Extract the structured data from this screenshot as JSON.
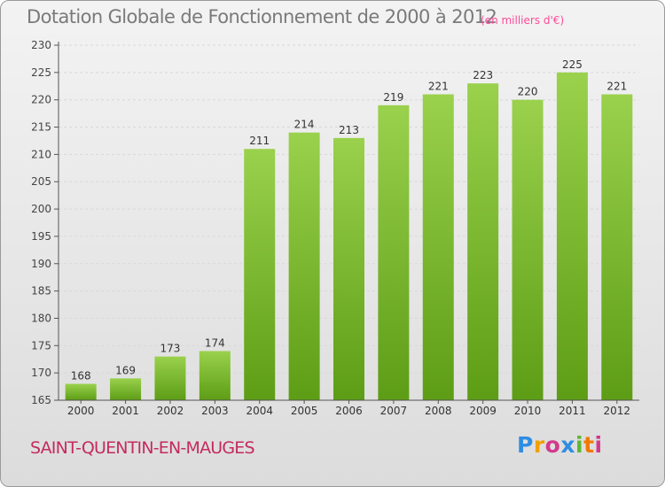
{
  "title": "Dotation Globale de Fonctionnement de 2000 à 2012",
  "subtitle": "(en milliers d'€)",
  "commune": "SAINT-QUENTIN-EN-MAUGES",
  "logo": {
    "p": "P",
    "r": "r",
    "o": "o",
    "x": "x",
    "i1": "i",
    "t": "t",
    "i2": "i"
  },
  "colors": {
    "bar_light": "#9ad14d",
    "bar_dark": "#5d9d15",
    "axis": "#555555",
    "grid": "#d8d8d8"
  },
  "chart_data": {
    "type": "bar",
    "title": "Dotation Globale de Fonctionnement de 2000 à 2012",
    "subtitle": "(en milliers d'€)",
    "xlabel": "",
    "ylabel": "",
    "categories": [
      "2000",
      "2001",
      "2002",
      "2003",
      "2004",
      "2005",
      "2006",
      "2007",
      "2008",
      "2009",
      "2010",
      "2011",
      "2012"
    ],
    "values": [
      168,
      169,
      173,
      174,
      211,
      214,
      213,
      219,
      221,
      223,
      220,
      225,
      221
    ],
    "ylim": [
      165,
      230
    ],
    "yticks": [
      165,
      170,
      175,
      180,
      185,
      190,
      195,
      200,
      205,
      210,
      215,
      220,
      225,
      230
    ],
    "grid": true
  }
}
